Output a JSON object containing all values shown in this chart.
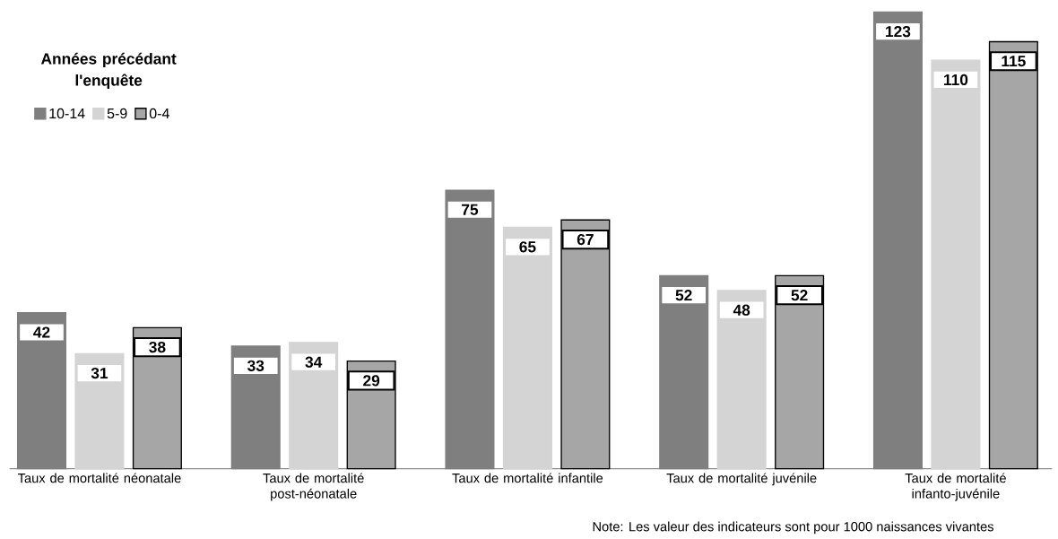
{
  "chart_data": {
    "type": "bar",
    "categories": [
      "Taux de mortalité néonatale",
      "Taux de mortalité post-néonatale",
      "Taux de mortalité infantile",
      "Taux de mortalité juvénile",
      "Taux de mortalité infanto-juvénile"
    ],
    "legend_title": "Années précédant l'enquête",
    "legend": "top left",
    "data_labels": true,
    "series": [
      {
        "name": "10-14",
        "color": "#7f7f7f",
        "values": [
          42,
          33,
          75,
          52,
          123
        ]
      },
      {
        "name": "5-9",
        "color": "#d4d4d4",
        "values": [
          31,
          34,
          65,
          48,
          110
        ]
      },
      {
        "name": "0-4",
        "color": "#a6a6a6",
        "values": [
          38,
          29,
          67,
          52,
          115
        ]
      }
    ],
    "annotations": [
      "Note:  Les valeur des indicateurs sont pour 1000 naissances vivantes"
    ]
  }
}
